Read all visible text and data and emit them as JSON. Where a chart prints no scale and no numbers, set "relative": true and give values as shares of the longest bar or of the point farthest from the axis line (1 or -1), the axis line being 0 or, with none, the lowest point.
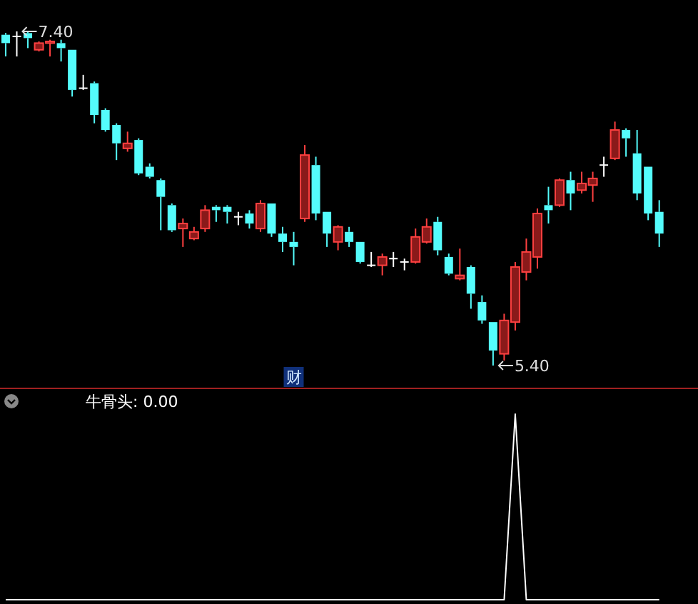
{
  "chart_data": [
    {
      "type": "candlestick",
      "categories": [
        null,
        null,
        null,
        null,
        null,
        null,
        null,
        null,
        null,
        null,
        null,
        null,
        null,
        null,
        null,
        null,
        null,
        null,
        null,
        null,
        null,
        null,
        null,
        null,
        null,
        null,
        null,
        null,
        null,
        null,
        null,
        null,
        null,
        null,
        null,
        null,
        null,
        null,
        null,
        null,
        null,
        null,
        null,
        null,
        null,
        null,
        null,
        null,
        null,
        null,
        null,
        null,
        null,
        null,
        null,
        null,
        null,
        null,
        null,
        null
      ],
      "ohlc": [
        [
          7.38,
          7.39,
          7.25,
          7.33
        ],
        [
          7.37,
          7.4,
          7.25,
          7.37
        ],
        [
          7.39,
          7.4,
          7.3,
          7.36
        ],
        [
          7.29,
          7.34,
          7.28,
          7.33
        ],
        [
          7.33,
          7.35,
          7.25,
          7.34
        ],
        [
          7.33,
          7.35,
          7.22,
          7.3
        ],
        [
          7.29,
          7.29,
          7.01,
          7.05
        ],
        [
          7.06,
          7.14,
          7.05,
          7.06
        ],
        [
          7.09,
          7.1,
          6.85,
          6.9
        ],
        [
          6.93,
          6.94,
          6.8,
          6.81
        ],
        [
          6.84,
          6.85,
          6.63,
          6.73
        ],
        [
          6.7,
          6.8,
          6.68,
          6.73
        ],
        [
          6.75,
          6.76,
          6.54,
          6.55
        ],
        [
          6.59,
          6.61,
          6.52,
          6.53
        ],
        [
          6.51,
          6.52,
          6.21,
          6.41
        ],
        [
          6.36,
          6.37,
          6.2,
          6.21
        ],
        [
          6.22,
          6.28,
          6.11,
          6.25
        ],
        [
          6.16,
          6.23,
          6.15,
          6.2
        ],
        [
          6.22,
          6.36,
          6.2,
          6.33
        ],
        [
          6.35,
          6.36,
          6.26,
          6.33
        ],
        [
          6.35,
          6.36,
          6.25,
          6.32
        ],
        [
          6.29,
          6.32,
          6.24,
          6.29
        ],
        [
          6.31,
          6.33,
          6.22,
          6.25
        ],
        [
          6.22,
          6.39,
          6.2,
          6.37
        ],
        [
          6.37,
          6.37,
          6.17,
          6.19
        ],
        [
          6.19,
          6.23,
          6.08,
          6.14
        ],
        [
          6.14,
          6.2,
          6.0,
          6.11
        ],
        [
          6.28,
          6.72,
          6.26,
          6.66
        ],
        [
          6.6,
          6.65,
          6.27,
          6.31
        ],
        [
          6.32,
          6.32,
          6.11,
          6.19
        ],
        [
          6.14,
          6.24,
          6.09,
          6.23
        ],
        [
          6.2,
          6.23,
          6.11,
          6.14
        ],
        [
          6.14,
          6.14,
          6.01,
          6.02
        ],
        [
          6.0,
          6.08,
          5.99,
          6.0
        ],
        [
          6.0,
          6.07,
          5.94,
          6.05
        ],
        [
          6.04,
          6.08,
          5.99,
          6.04
        ],
        [
          6.02,
          6.04,
          5.97,
          6.02
        ],
        [
          6.02,
          6.22,
          6.01,
          6.17
        ],
        [
          6.14,
          6.28,
          6.13,
          6.23
        ],
        [
          6.26,
          6.29,
          6.06,
          6.09
        ],
        [
          6.05,
          6.07,
          5.94,
          5.95
        ],
        [
          5.92,
          6.1,
          5.91,
          5.94
        ],
        [
          5.99,
          6.0,
          5.74,
          5.83
        ],
        [
          5.78,
          5.82,
          5.65,
          5.67
        ],
        [
          5.66,
          5.66,
          5.4,
          5.49
        ],
        [
          5.47,
          5.71,
          5.43,
          5.67
        ],
        [
          5.66,
          6.02,
          5.61,
          5.99
        ],
        [
          5.96,
          6.16,
          5.91,
          6.08
        ],
        [
          6.05,
          6.34,
          5.98,
          6.31
        ],
        [
          6.36,
          6.47,
          6.25,
          6.33
        ],
        [
          6.36,
          6.52,
          6.35,
          6.51
        ],
        [
          6.51,
          6.56,
          6.33,
          6.43
        ],
        [
          6.45,
          6.56,
          6.43,
          6.49
        ],
        [
          6.48,
          6.56,
          6.38,
          6.52
        ],
        [
          6.6,
          6.65,
          6.53,
          6.6
        ],
        [
          6.64,
          6.86,
          6.63,
          6.81
        ],
        [
          6.81,
          6.82,
          6.65,
          6.76
        ],
        [
          6.67,
          6.81,
          6.39,
          6.43
        ],
        [
          6.59,
          6.59,
          6.27,
          6.31
        ],
        [
          6.32,
          6.39,
          6.11,
          6.19
        ]
      ],
      "annotations": [
        "7.40",
        "5.40",
        "财"
      ]
    },
    {
      "type": "line",
      "title": "牛骨头: 0.00",
      "relative": true,
      "categories": [
        null,
        null,
        null,
        null,
        null,
        null,
        null,
        null,
        null,
        null,
        null,
        null,
        null,
        null,
        null,
        null,
        null,
        null,
        null,
        null,
        null,
        null,
        null,
        null,
        null,
        null,
        null,
        null,
        null,
        null,
        null,
        null,
        null,
        null,
        null,
        null,
        null,
        null,
        null,
        null,
        null,
        null,
        null,
        null,
        null,
        null,
        null,
        null,
        null,
        null,
        null,
        null,
        null,
        null,
        null,
        null,
        null,
        null,
        null,
        null
      ],
      "series": [
        {
          "color": "#ffffff",
          "values": [
            0,
            0,
            0,
            0,
            0,
            0,
            0,
            0,
            0,
            0,
            0,
            0,
            0,
            0,
            0,
            0,
            0,
            0,
            0,
            0,
            0,
            0,
            0,
            0,
            0,
            0,
            0,
            0,
            0,
            0,
            0,
            0,
            0,
            0,
            0,
            0,
            0,
            0,
            0,
            0,
            0,
            0,
            0,
            0,
            0,
            0,
            1,
            0,
            0,
            0,
            0,
            0,
            0,
            0,
            0,
            0,
            0,
            0,
            0,
            0
          ]
        }
      ]
    }
  ]
}
